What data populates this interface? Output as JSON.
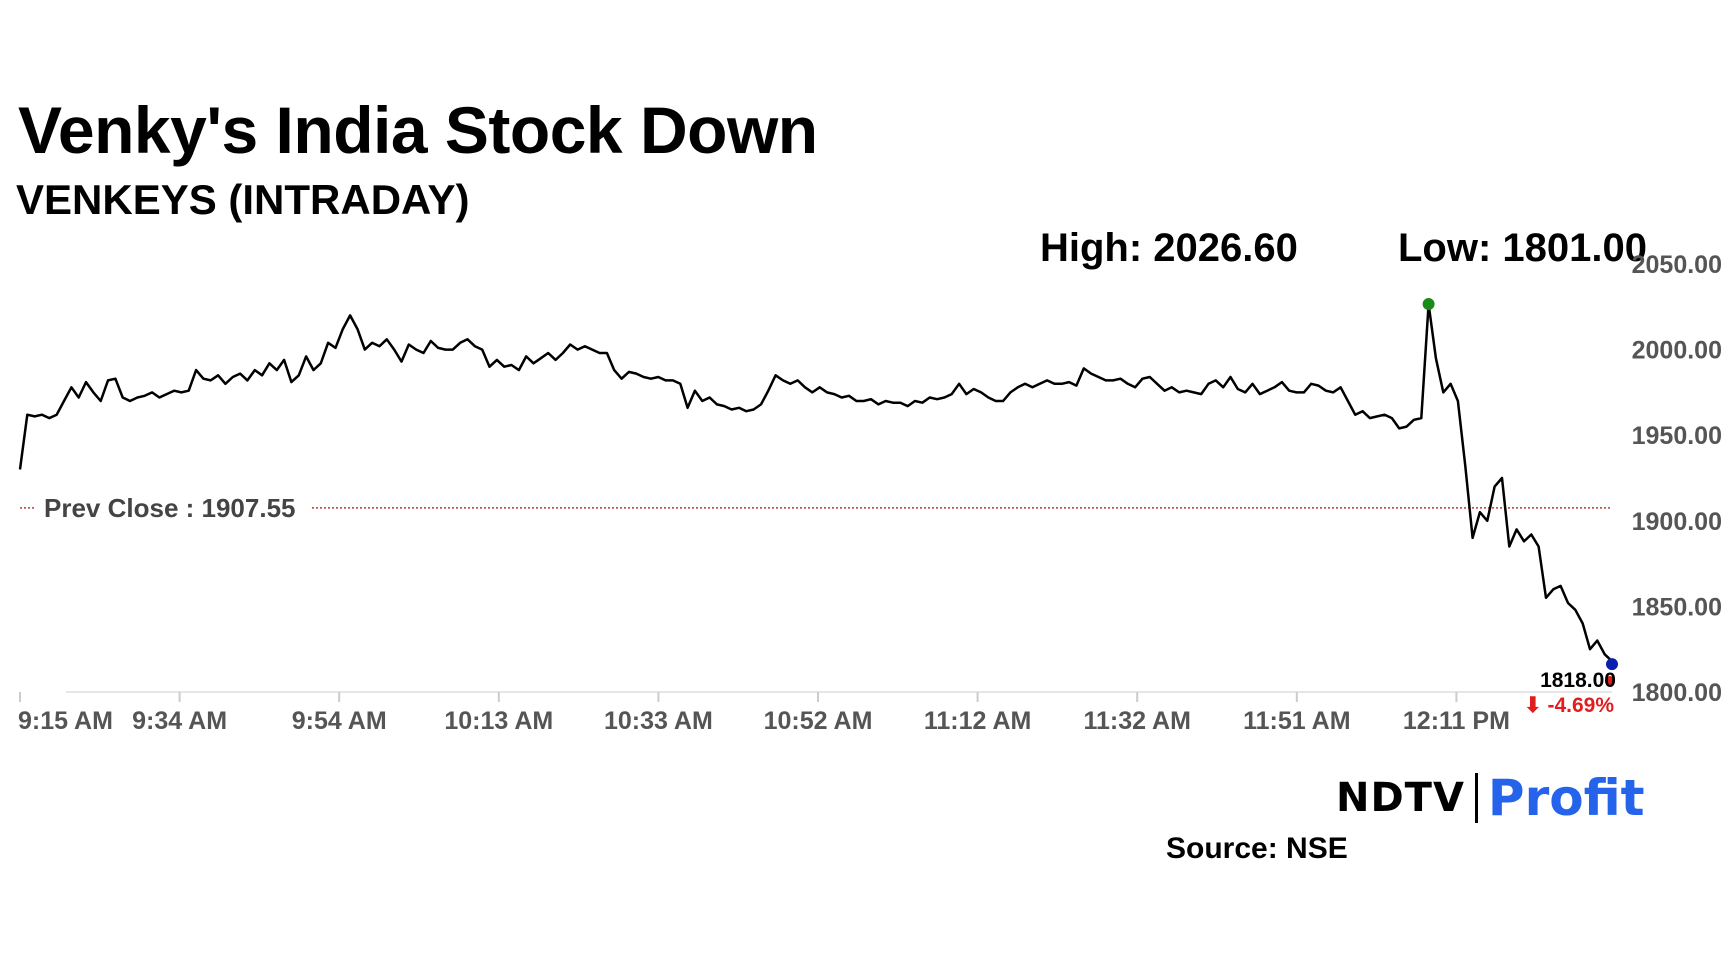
{
  "header": {
    "title": "Venky's India Stock Down",
    "subtitle": "VENKEYS (INTRADAY)",
    "high_label": "High: 2026.60",
    "low_label": "Low: 1801.00"
  },
  "footer": {
    "logo_text_1": "NDTV",
    "logo_text_2": "Profit",
    "source": "Source: NSE"
  },
  "colors": {
    "line": "#000000",
    "prev_close_line": "#c0392b",
    "high_marker": "#1a8a1a",
    "last_marker": "#0a1fb0",
    "change_negative": "#e11d1d"
  },
  "chart_data": {
    "type": "line",
    "title": "Venky's India Stock Down",
    "subtitle": "VENKEYS (INTRADAY)",
    "x_tick_labels": [
      "9:15 AM",
      "9:34 AM",
      "9:54 AM",
      "10:13 AM",
      "10:33 AM",
      "10:52 AM",
      "11:12 AM",
      "11:32 AM",
      "11:51 AM",
      "12:11 PM"
    ],
    "y_tick_labels": [
      "2050.00",
      "2000.00",
      "1950.00",
      "1900.00",
      "1850.00",
      "1800.00"
    ],
    "y_ticks": [
      2050,
      2000,
      1950,
      1900,
      1850,
      1800
    ],
    "ylim": [
      1800,
      2050
    ],
    "y_axis_side": "right",
    "grid": false,
    "prev_close": {
      "label": "Prev Close : 1907.55",
      "value": 1907.55
    },
    "high": 2026.6,
    "low": 1801.0,
    "last": {
      "label": "1818.00",
      "value": 1818.0,
      "change": "-4.69%"
    },
    "series": [
      {
        "values": [
          1930,
          1962,
          1961,
          1962,
          1960,
          1962,
          1970,
          1978,
          1972,
          1981,
          1975,
          1970,
          1982,
          1983,
          1972,
          1970,
          1972,
          1973,
          1975,
          1972,
          1974,
          1976,
          1975,
          1976,
          1988,
          1983,
          1982,
          1985,
          1980,
          1984,
          1986,
          1982,
          1988,
          1985,
          1992,
          1988,
          1994,
          1981,
          1985,
          1996,
          1988,
          1992,
          2004,
          2001,
          2012,
          2020,
          2012,
          2000,
          2004,
          2002,
          2006,
          2000,
          1993,
          2003,
          2000,
          1998,
          2005,
          2001,
          2000,
          2000,
          2004,
          2006,
          2002,
          2000,
          1990,
          1994,
          1990,
          1991,
          1988,
          1996,
          1992,
          1995,
          1998,
          1994,
          1998,
          2003,
          2000,
          2002,
          2000,
          1998,
          1998,
          1988,
          1983,
          1987,
          1986,
          1984,
          1983,
          1984,
          1982,
          1982,
          1980,
          1966,
          1976,
          1970,
          1972,
          1968,
          1967,
          1965,
          1966,
          1964,
          1965,
          1968,
          1976,
          1985,
          1982,
          1980,
          1982,
          1978,
          1975,
          1978,
          1975,
          1974,
          1972,
          1973,
          1970,
          1970,
          1971,
          1968,
          1970,
          1969,
          1969,
          1967,
          1970,
          1969,
          1972,
          1971,
          1972,
          1974,
          1980,
          1974,
          1977,
          1975,
          1972,
          1970,
          1970,
          1975,
          1978,
          1980,
          1978,
          1980,
          1982,
          1980,
          1980,
          1981,
          1979,
          1989,
          1986,
          1984,
          1982,
          1982,
          1983,
          1980,
          1978,
          1983,
          1984,
          1980,
          1976,
          1978,
          1975,
          1976,
          1975,
          1974,
          1980,
          1982,
          1978,
          1984,
          1977,
          1975,
          1980,
          1974,
          1976,
          1978,
          1981,
          1976,
          1975,
          1975,
          1980,
          1979,
          1976,
          1975,
          1978,
          1970,
          1962,
          1964,
          1960,
          1961,
          1962,
          1960,
          1954,
          1955,
          1959,
          1960,
          2026.6,
          1995,
          1975,
          1980,
          1970,
          1932,
          1890,
          1905,
          1900,
          1920,
          1925,
          1885,
          1895,
          1888,
          1892,
          1885,
          1855,
          1860,
          1862,
          1852,
          1848,
          1840,
          1825,
          1830,
          1822,
          1818
        ]
      }
    ]
  }
}
